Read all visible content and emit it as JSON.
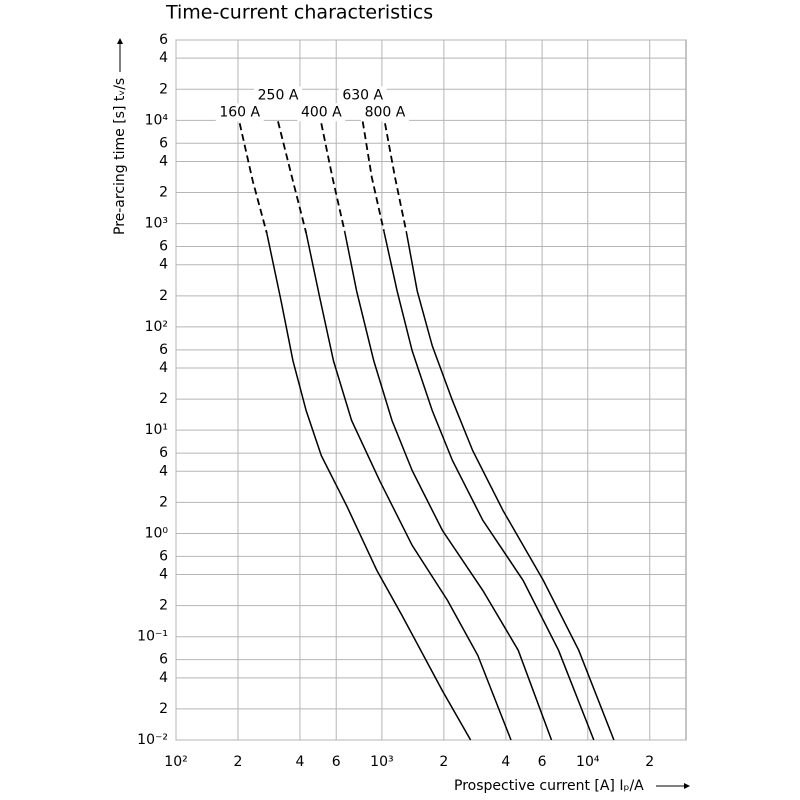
{
  "chart_data": {
    "type": "line",
    "title": "Time-current characteristics",
    "x_label": "Prospective current [A]  Iₚ/A",
    "y_label": "Pre-arcing time [s]  tᵥ/s",
    "xscale": "log",
    "yscale": "log",
    "grid": true,
    "xlim": [
      100,
      30000
    ],
    "ylim": [
      0.01,
      60000
    ],
    "xticks": [
      {
        "value": 100,
        "label": "10²"
      },
      {
        "value": 200,
        "label": "2"
      },
      {
        "value": 400,
        "label": "4"
      },
      {
        "value": 600,
        "label": "6"
      },
      {
        "value": 1000,
        "label": "10³"
      },
      {
        "value": 2000,
        "label": "2"
      },
      {
        "value": 4000,
        "label": "4"
      },
      {
        "value": 6000,
        "label": "6"
      },
      {
        "value": 10000,
        "label": "10⁴"
      },
      {
        "value": 20000,
        "label": "2"
      }
    ],
    "yticks": [
      {
        "value": 0.01,
        "label": "10⁻²"
      },
      {
        "value": 0.02,
        "label": "2"
      },
      {
        "value": 0.04,
        "label": "4"
      },
      {
        "value": 0.06,
        "label": "6"
      },
      {
        "value": 0.1,
        "label": "10⁻¹"
      },
      {
        "value": 0.2,
        "label": "2"
      },
      {
        "value": 0.4,
        "label": "4"
      },
      {
        "value": 0.6,
        "label": "6"
      },
      {
        "value": 1,
        "label": "10⁰"
      },
      2,
      4,
      6,
      {
        "value": 10,
        "label": "10¹"
      },
      {
        "value": 20,
        "label": "2"
      },
      {
        "value": 40,
        "label": "4"
      },
      {
        "value": 60,
        "label": "6"
      },
      {
        "value": 100,
        "label": "10²"
      },
      {
        "value": 200,
        "label": "2"
      },
      {
        "value": 400,
        "label": "4"
      },
      {
        "value": 600,
        "label": "6"
      },
      {
        "value": 1000,
        "label": "10³"
      },
      {
        "value": 2000,
        "label": "2"
      },
      {
        "value": 4000,
        "label": "4"
      },
      {
        "value": 6000,
        "label": "6"
      },
      {
        "value": 10000,
        "label": "10⁴"
      },
      {
        "value": 20000,
        "label": "2"
      },
      {
        "value": 40000,
        "label": "4"
      },
      {
        "value": 60000,
        "label": "6"
      }
    ],
    "series": [
      {
        "name": "160 A",
        "color": "#000000",
        "dashed": {
          "x": [
            204,
            236,
            276
          ],
          "values": [
            9360,
            2576,
            809
          ]
        },
        "x": [
          276,
          324,
          370,
          429,
          508,
          673,
          945,
          1253,
          1968,
          2698
        ],
        "values": [
          809,
          178,
          46.9,
          15.4,
          5.67,
          1.87,
          0.44,
          0.16,
          0.03,
          0.01
        ]
      },
      {
        "name": "250 A",
        "color": "#000000",
        "dashed": {
          "x": [
            313,
            366,
            429
          ],
          "values": [
            9770,
            2812,
            809
          ]
        },
        "x": [
          429,
          497,
          582,
          713,
          975,
          1403,
          2083,
          2924,
          4240
        ],
        "values": [
          809,
          199,
          46.9,
          12.4,
          3.25,
          0.766,
          0.225,
          0.066,
          0.01
        ]
      },
      {
        "name": "400 A",
        "color": "#000000",
        "dashed": {
          "x": [
            508,
            575,
            659
          ],
          "values": [
            9360,
            2812,
            847
          ]
        },
        "x": [
          659,
          754,
          914,
          1120,
          1403,
          1968,
          3090,
          4592,
          6668
        ],
        "values": [
          847,
          223,
          46.9,
          12.4,
          4.06,
          1.07,
          0.281,
          0.0741,
          0.01
        ]
      },
      {
        "name": "630 A",
        "color": "#000000",
        "dashed": {
          "x": [
            807,
            893,
            1023
          ],
          "values": [
            9770,
            2812,
            847
          ]
        },
        "x": [
          1023,
          1185,
          1403,
          1758,
          2203,
          3090,
          4853,
          7211,
          10700
        ],
        "values": [
          847,
          223,
          58.6,
          15.4,
          5.07,
          1.34,
          0.351,
          0.0741,
          0.01
        ]
      },
      {
        "name": "800 A",
        "color": "#000000",
        "dashed": {
          "x": [
            1035,
            1158,
            1312
          ],
          "values": [
            9360,
            2812,
            847
          ]
        },
        "x": [
          1312,
          1485,
          1758,
          2203,
          2761,
          3873,
          6081,
          9036,
          13400
        ],
        "values": [
          847,
          223,
          65.5,
          19.3,
          6.34,
          1.67,
          0.351,
          0.0741,
          0.01
        ]
      }
    ]
  }
}
